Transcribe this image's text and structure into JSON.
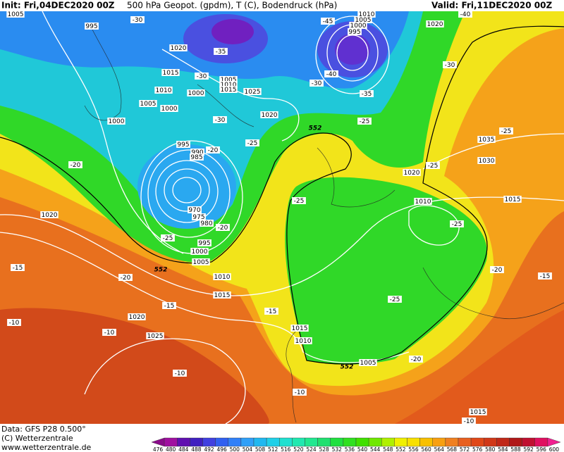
{
  "header": {
    "init": "Init: Fri,04DEC2020 00Z",
    "title": "500 hPa Geopot. (gpdm), T (C), Bodendruck (hPa)",
    "valid": "Valid: Fri,11DEC2020 00Z"
  },
  "map": {
    "isobar_labels": [
      "1005",
      "995",
      "1020",
      "1015",
      "1010",
      "1000",
      "1005",
      "1010",
      "1015",
      "1025",
      "1005",
      "1000",
      "1020",
      "1000",
      "995",
      "990",
      "985",
      "970",
      "975",
      "980",
      "995",
      "1000",
      "1005",
      "1010",
      "1015",
      "1020",
      "1020",
      "1025",
      "1015",
      "1010",
      "1005",
      "1010",
      "1005",
      "1000",
      "995",
      "1020",
      "1035",
      "1030",
      "1020",
      "1015",
      "1010",
      "1015"
    ],
    "temperature_labels": [
      "-30",
      "-35",
      "-30",
      "-45",
      "-40",
      "-30",
      "-35",
      "-30",
      "-40",
      "-25",
      "-30",
      "-25",
      "-20",
      "-20",
      "-25",
      "-25",
      "-25",
      "-25",
      "-20",
      "-25",
      "-20",
      "-15",
      "-20",
      "-15",
      "-15",
      "-25",
      "-10",
      "-10",
      "-10",
      "-20",
      "-10",
      "-15",
      "-10"
    ],
    "contour_labels": [
      "552",
      "552",
      "552"
    ]
  },
  "colorbar": {
    "levels": [
      476,
      480,
      484,
      488,
      492,
      496,
      500,
      504,
      508,
      512,
      516,
      520,
      524,
      528,
      532,
      536,
      540,
      544,
      548,
      552,
      556,
      560,
      564,
      568,
      572,
      576,
      580,
      584,
      588,
      592,
      596,
      600
    ],
    "colors": [
      "#8a0c8a",
      "#a010a0",
      "#6010b0",
      "#4020c0",
      "#4040e0",
      "#3060f0",
      "#3080f8",
      "#30a0f8",
      "#20b8f0",
      "#20d0e8",
      "#20e0d0",
      "#20e8b0",
      "#20e890",
      "#20e070",
      "#20e040",
      "#30e020",
      "#40e000",
      "#70e800",
      "#b0f000",
      "#f0f000",
      "#f8e000",
      "#f8c000",
      "#f8a010",
      "#f08020",
      "#e86020",
      "#e04818",
      "#d03818",
      "#c02818",
      "#b01818",
      "#c01030",
      "#e01060",
      "#f02090"
    ]
  },
  "footer": {
    "data": "Data: GFS P28 0.500°",
    "copyright": "(C) Wetterzentrale",
    "url": "www.wetterzentrale.de"
  }
}
